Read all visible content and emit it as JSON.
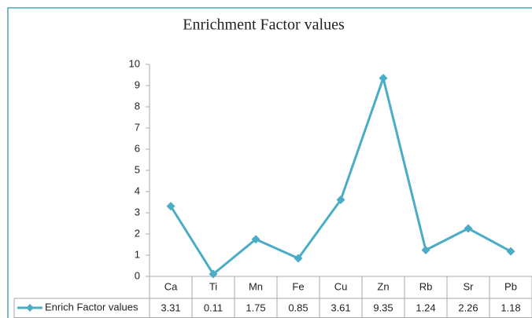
{
  "chart_data": {
    "type": "line",
    "title": "Enrichment Factor values",
    "categories": [
      "Ca",
      "Ti",
      "Mn",
      "Fe",
      "Cu",
      "Zn",
      "Rb",
      "Sr",
      "Pb"
    ],
    "series": [
      {
        "name": "Enrich Factor values",
        "color": "#4bacc6",
        "values": [
          3.31,
          0.11,
          1.75,
          0.85,
          3.61,
          9.35,
          1.24,
          2.26,
          1.18
        ]
      }
    ],
    "ylim": [
      0,
      10
    ],
    "yticks": [
      0,
      1,
      2,
      3,
      4,
      5,
      6,
      7,
      8,
      9,
      10
    ],
    "grid": false
  }
}
